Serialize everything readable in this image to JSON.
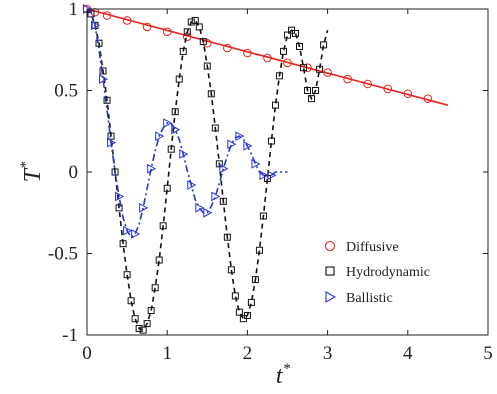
{
  "chart_data": {
    "type": "line",
    "xlabel": "t",
    "xlabel_sup": "*",
    "ylabel": "T",
    "ylabel_sup": "*",
    "xlim": [
      0,
      5
    ],
    "ylim": [
      -1,
      1
    ],
    "xticks": [
      0,
      1,
      2,
      3,
      4,
      5
    ],
    "xtick_labels": [
      "0",
      "1",
      "2",
      "3",
      "4",
      "5"
    ],
    "yticks": [
      -1,
      -0.5,
      0,
      0.5,
      1
    ],
    "ytick_labels": [
      "-1",
      "-0.5",
      "0",
      "0.5",
      "1"
    ],
    "grid": false,
    "legend_position": "bottom-right",
    "series": [
      {
        "name": "Diffusive",
        "color": "#e8221c",
        "marker": "circle",
        "line_style": "solid",
        "line_x": [
          0,
          4.5
        ],
        "line_y": [
          1.0,
          0.41
        ],
        "points_x": [
          0.0,
          0.1,
          0.25,
          0.5,
          0.75,
          1.0,
          1.25,
          1.5,
          1.75,
          2.0,
          2.25,
          2.5,
          2.75,
          3.0,
          3.25,
          3.5,
          3.75,
          4.0,
          4.25
        ],
        "points_y": [
          1.0,
          0.98,
          0.96,
          0.93,
          0.89,
          0.86,
          0.83,
          0.79,
          0.76,
          0.73,
          0.7,
          0.67,
          0.64,
          0.61,
          0.57,
          0.54,
          0.51,
          0.48,
          0.45
        ]
      },
      {
        "name": "Hydrodynamic",
        "color": "#111111",
        "marker": "square",
        "line_style": "dashed",
        "line_x": [
          0,
          0.05,
          0.1,
          0.15,
          0.2,
          0.25,
          0.3,
          0.35,
          0.4,
          0.45,
          0.5,
          0.55,
          0.6,
          0.65,
          0.7,
          0.75,
          0.8,
          0.85,
          0.9,
          0.95,
          1.0,
          1.05,
          1.1,
          1.15,
          1.2,
          1.25,
          1.3,
          1.35,
          1.4,
          1.45,
          1.5,
          1.55,
          1.6,
          1.65,
          1.7,
          1.75,
          1.8,
          1.85,
          1.9,
          1.95,
          2.0,
          2.05,
          2.1,
          2.15,
          2.2,
          2.25,
          2.3,
          2.35,
          2.4,
          2.45,
          2.5,
          2.55,
          2.6,
          2.65,
          2.7,
          2.75,
          2.8,
          2.85,
          2.9,
          2.95,
          3.0
        ],
        "line_y": [
          1.0,
          0.97,
          0.9,
          0.79,
          0.62,
          0.44,
          0.22,
          0.0,
          -0.22,
          -0.44,
          -0.63,
          -0.79,
          -0.9,
          -0.96,
          -0.97,
          -0.93,
          -0.85,
          -0.71,
          -0.54,
          -0.33,
          -0.1,
          0.14,
          0.37,
          0.57,
          0.74,
          0.86,
          0.92,
          0.93,
          0.89,
          0.8,
          0.65,
          0.48,
          0.27,
          0.05,
          -0.18,
          -0.4,
          -0.6,
          -0.76,
          -0.86,
          -0.9,
          -0.88,
          -0.8,
          -0.66,
          -0.48,
          -0.27,
          -0.04,
          0.19,
          0.41,
          0.59,
          0.74,
          0.84,
          0.87,
          0.85,
          0.77,
          0.64,
          0.5,
          0.45,
          0.5,
          0.63,
          0.78,
          0.87
        ],
        "points_x": [
          0.05,
          0.1,
          0.15,
          0.2,
          0.25,
          0.3,
          0.35,
          0.4,
          0.45,
          0.5,
          0.55,
          0.6,
          0.65,
          0.7,
          0.75,
          0.8,
          0.85,
          0.9,
          0.95,
          1.0,
          1.05,
          1.1,
          1.15,
          1.2,
          1.25,
          1.3,
          1.35,
          1.4,
          1.45,
          1.5,
          1.55,
          1.6,
          1.65,
          1.7,
          1.75,
          1.8,
          1.85,
          1.9,
          1.95,
          2.0,
          2.05,
          2.1,
          2.15,
          2.2,
          2.25,
          2.3,
          2.35,
          2.4,
          2.45,
          2.5,
          2.55,
          2.6,
          2.65,
          2.7,
          2.75,
          2.8,
          2.85,
          2.9,
          2.95
        ],
        "points_y": [
          0.97,
          0.9,
          0.79,
          0.62,
          0.44,
          0.22,
          0.0,
          -0.22,
          -0.44,
          -0.63,
          -0.79,
          -0.9,
          -0.96,
          -0.97,
          -0.93,
          -0.85,
          -0.71,
          -0.54,
          -0.33,
          -0.1,
          0.14,
          0.37,
          0.57,
          0.74,
          0.86,
          0.92,
          0.93,
          0.89,
          0.8,
          0.65,
          0.48,
          0.27,
          0.05,
          -0.18,
          -0.4,
          -0.6,
          -0.76,
          -0.86,
          -0.9,
          -0.88,
          -0.8,
          -0.66,
          -0.48,
          -0.27,
          -0.04,
          0.19,
          0.41,
          0.59,
          0.74,
          0.84,
          0.87,
          0.85,
          0.77,
          0.64,
          0.5,
          0.45,
          0.5,
          0.63,
          0.78
        ]
      },
      {
        "name": "Ballistic",
        "color": "#2a35d8",
        "marker": "triangle-right",
        "line_style": "dashdot",
        "line_x": [
          0,
          0.05,
          0.1,
          0.15,
          0.2,
          0.25,
          0.3,
          0.35,
          0.4,
          0.45,
          0.5,
          0.55,
          0.6,
          0.65,
          0.7,
          0.75,
          0.8,
          0.85,
          0.9,
          0.95,
          1.0,
          1.05,
          1.1,
          1.15,
          1.2,
          1.25,
          1.3,
          1.35,
          1.4,
          1.45,
          1.5,
          1.55,
          1.6,
          1.65,
          1.7,
          1.75,
          1.8,
          1.85,
          1.9,
          1.95,
          2.0,
          2.05,
          2.1,
          2.15,
          2.2,
          2.25,
          2.3,
          2.35,
          2.4,
          2.45,
          2.5
        ],
        "line_y": [
          1.0,
          0.98,
          0.9,
          0.75,
          0.57,
          0.38,
          0.18,
          0.0,
          -0.15,
          -0.28,
          -0.36,
          -0.4,
          -0.38,
          -0.32,
          -0.22,
          -0.1,
          0.02,
          0.13,
          0.22,
          0.27,
          0.3,
          0.3,
          0.26,
          0.2,
          0.11,
          0.01,
          -0.08,
          -0.17,
          -0.22,
          -0.25,
          -0.25,
          -0.21,
          -0.15,
          -0.07,
          0.02,
          0.1,
          0.17,
          0.21,
          0.22,
          0.2,
          0.16,
          0.11,
          0.05,
          0.0,
          -0.02,
          -0.03,
          -0.02,
          0.0,
          0.0,
          0.0,
          0.0
        ],
        "points_x": [
          0.0,
          0.1,
          0.2,
          0.3,
          0.4,
          0.5,
          0.6,
          0.7,
          0.8,
          0.9,
          1.0,
          1.1,
          1.2,
          1.3,
          1.4,
          1.5,
          1.6,
          1.7,
          1.8,
          1.9,
          2.0,
          2.1,
          2.2,
          2.3
        ],
        "points_y": [
          1.0,
          0.9,
          0.57,
          0.18,
          -0.15,
          -0.36,
          -0.38,
          -0.22,
          0.02,
          0.22,
          0.3,
          0.26,
          0.11,
          -0.08,
          -0.22,
          -0.25,
          -0.15,
          0.02,
          0.17,
          0.22,
          0.16,
          0.05,
          -0.02,
          -0.02
        ]
      }
    ]
  }
}
